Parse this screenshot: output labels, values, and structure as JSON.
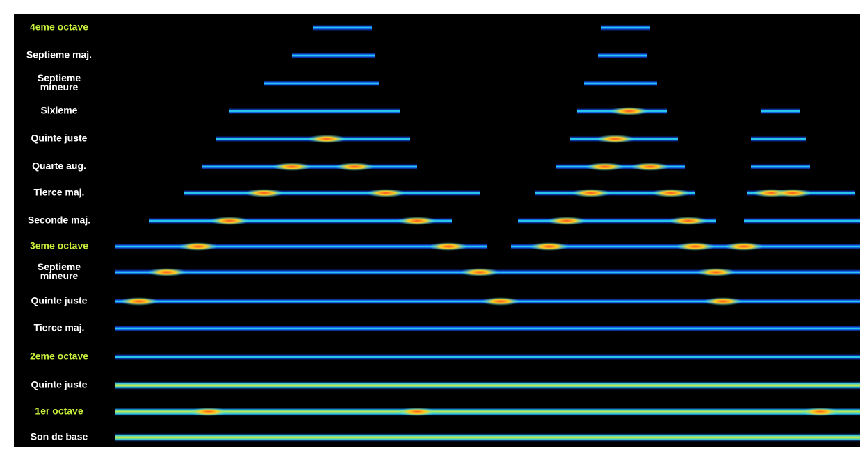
{
  "labels": [
    {
      "lines": [
        "4eme octave"
      ],
      "color": "#c8f03c"
    },
    {
      "lines": [
        "Septieme maj."
      ],
      "color": "#ffffff"
    },
    {
      "lines": [
        "Septieme",
        "mineure"
      ],
      "color": "#ffffff"
    },
    {
      "lines": [
        "Sixieme"
      ],
      "color": "#ffffff"
    },
    {
      "lines": [
        "Quinte juste"
      ],
      "color": "#ffffff"
    },
    {
      "lines": [
        "Quarte aug."
      ],
      "color": "#ffffff"
    },
    {
      "lines": [
        "Tierce maj."
      ],
      "color": "#ffffff"
    },
    {
      "lines": [
        "Seconde maj."
      ],
      "color": "#ffffff"
    },
    {
      "lines": [
        "3eme octave"
      ],
      "color": "#c8f03c"
    },
    {
      "lines": [
        "Septieme",
        "mineure"
      ],
      "color": "#ffffff"
    },
    {
      "lines": [
        "Quinte juste"
      ],
      "color": "#ffffff"
    },
    {
      "lines": [
        "Tierce maj."
      ],
      "color": "#ffffff"
    },
    {
      "lines": [
        "2eme octave"
      ],
      "color": "#c8f03c"
    },
    {
      "lines": [
        "Quinte juste"
      ],
      "color": "#ffffff"
    },
    {
      "lines": [
        "1er octave"
      ],
      "color": "#c8f03c"
    },
    {
      "lines": [
        "Son de base"
      ],
      "color": "#ffffff"
    }
  ]
}
